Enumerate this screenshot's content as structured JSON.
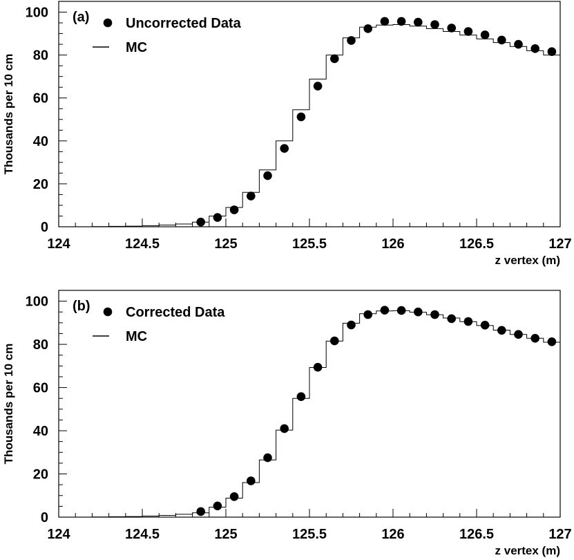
{
  "chart_data": [
    {
      "type": "scatter",
      "panel_label": "(a)",
      "xlabel": "z vertex (m)",
      "ylabel": "Thousands per 10 cm",
      "xlim": [
        124,
        127
      ],
      "ylim": [
        0,
        105
      ],
      "x_ticks": [
        "124",
        "124.5",
        "125",
        "125.5",
        "126",
        "126.5",
        "127"
      ],
      "y_ticks": [
        "0",
        "20",
        "40",
        "60",
        "80",
        "100"
      ],
      "legend_position": "top-left",
      "series": [
        {
          "name": "Uncorrected Data",
          "style": "markers",
          "x": [
            124.85,
            124.95,
            125.05,
            125.15,
            125.25,
            125.35,
            125.45,
            125.55,
            125.65,
            125.75,
            125.85,
            125.95,
            126.05,
            126.15,
            126.25,
            126.35,
            126.45,
            126.55,
            126.65,
            126.75,
            126.85,
            126.95
          ],
          "values": [
            2.2,
            4.3,
            7.9,
            14.3,
            23.8,
            36.5,
            51.2,
            65.5,
            78.3,
            86.8,
            92.3,
            95.7,
            95.7,
            95.3,
            94.2,
            92.6,
            91.0,
            89.4,
            87.0,
            85.0,
            83.0,
            81.6
          ]
        },
        {
          "name": "MC",
          "style": "step",
          "bin_edges": [
            124.2,
            124.3,
            124.4,
            124.5,
            124.6,
            124.7,
            124.8,
            124.9,
            125.0,
            125.1,
            125.2,
            125.3,
            125.4,
            125.5,
            125.6,
            125.7,
            125.8,
            125.9,
            126.0,
            126.1,
            126.2,
            126.3,
            126.4,
            126.5,
            126.6,
            126.7,
            126.8,
            126.9,
            127.0
          ],
          "values": [
            0.1,
            0.2,
            0.3,
            0.5,
            0.8,
            1.3,
            2.2,
            5.0,
            9.0,
            16.0,
            26.5,
            40.0,
            54.5,
            68.8,
            80.0,
            88.0,
            93.0,
            94.0,
            94.2,
            93.5,
            92.3,
            91.0,
            89.3,
            87.5,
            85.8,
            84.0,
            82.0,
            80.0
          ]
        }
      ]
    },
    {
      "type": "scatter",
      "panel_label": "(b)",
      "xlabel": "z vertex (m)",
      "ylabel": "Thousands per 10 cm",
      "xlim": [
        124,
        127
      ],
      "ylim": [
        0,
        105
      ],
      "x_ticks": [
        "124",
        "124.5",
        "125",
        "125.5",
        "126",
        "126.5",
        "127"
      ],
      "y_ticks": [
        "0",
        "20",
        "40",
        "60",
        "80",
        "100"
      ],
      "legend_position": "top-left",
      "series": [
        {
          "name": "Corrected Data",
          "style": "markers",
          "x": [
            124.85,
            124.95,
            125.05,
            125.15,
            125.25,
            125.35,
            125.45,
            125.55,
            125.65,
            125.75,
            125.85,
            125.95,
            126.05,
            126.15,
            126.25,
            126.35,
            126.45,
            126.55,
            126.65,
            126.75,
            126.85,
            126.95
          ],
          "values": [
            2.6,
            5.2,
            9.5,
            16.8,
            27.5,
            41.0,
            55.8,
            69.4,
            81.6,
            89.0,
            93.8,
            95.8,
            95.7,
            95.0,
            93.8,
            91.9,
            90.6,
            88.9,
            86.5,
            84.6,
            82.8,
            81.2
          ]
        },
        {
          "name": "MC",
          "style": "step",
          "bin_edges": [
            124.2,
            124.3,
            124.4,
            124.5,
            124.6,
            124.7,
            124.8,
            124.9,
            125.0,
            125.1,
            125.2,
            125.3,
            125.4,
            125.5,
            125.6,
            125.7,
            125.8,
            125.9,
            126.0,
            126.1,
            126.2,
            126.3,
            126.4,
            126.5,
            126.6,
            126.7,
            126.8,
            126.9,
            127.0
          ],
          "values": [
            0.1,
            0.2,
            0.3,
            0.5,
            0.8,
            1.3,
            2.0,
            4.6,
            8.8,
            16.0,
            26.5,
            40.3,
            55.0,
            69.3,
            81.5,
            89.8,
            94.2,
            95.5,
            95.6,
            94.9,
            93.7,
            92.2,
            90.5,
            88.7,
            86.6,
            84.6,
            82.8,
            81.0
          ]
        }
      ]
    }
  ]
}
